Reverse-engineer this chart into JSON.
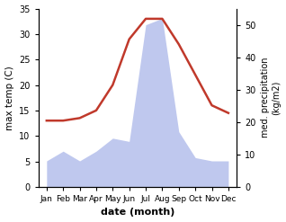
{
  "months": [
    "Jan",
    "Feb",
    "Mar",
    "Apr",
    "May",
    "Jun",
    "Jul",
    "Aug",
    "Sep",
    "Oct",
    "Nov",
    "Dec"
  ],
  "month_indices": [
    1,
    2,
    3,
    4,
    5,
    6,
    7,
    8,
    9,
    10,
    11,
    12
  ],
  "temperature": [
    13,
    13,
    13.5,
    15,
    20,
    29,
    33,
    33,
    28,
    22,
    16,
    14.5
  ],
  "precipitation": [
    8,
    11,
    8,
    11,
    15,
    14,
    50,
    52,
    17,
    9,
    8,
    8
  ],
  "temp_color": "#c0392b",
  "precip_fill_color": "#bfc8ee",
  "temp_ylim": [
    0,
    35
  ],
  "precip_ylim": [
    0,
    55
  ],
  "temp_yticks": [
    0,
    5,
    10,
    15,
    20,
    25,
    30,
    35
  ],
  "precip_yticks": [
    0,
    10,
    20,
    30,
    40,
    50
  ],
  "xlabel": "date (month)",
  "ylabel_left": "max temp (C)",
  "ylabel_right": "med. precipitation\n(kg/m2)",
  "figsize": [
    3.18,
    2.47
  ],
  "dpi": 100
}
